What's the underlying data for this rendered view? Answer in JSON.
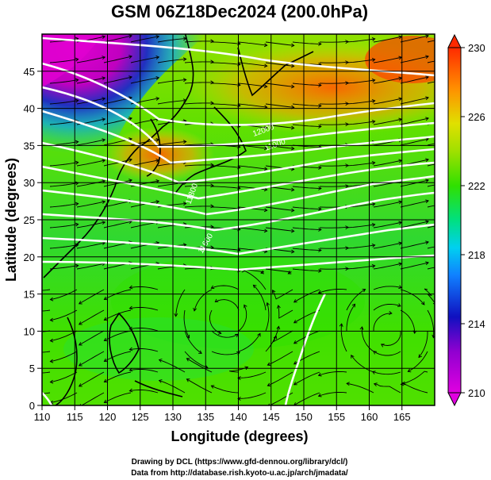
{
  "title": "GSM 06Z18Dec2024 (200.0hPa)",
  "map": {
    "lon_range": [
      110,
      170
    ],
    "lat_range": [
      0,
      50
    ],
    "x_ticks": [
      110,
      115,
      120,
      125,
      130,
      135,
      140,
      145,
      150,
      155,
      160,
      165
    ],
    "y_ticks": [
      0,
      5,
      10,
      15,
      20,
      25,
      30,
      35,
      40,
      45
    ],
    "grid": true,
    "contour_labels": [
      "11000",
      "11600",
      "11800",
      "12000"
    ]
  },
  "axes": {
    "xlabel": "Longitude (degrees)",
    "ylabel": "Latitude  (degrees)"
  },
  "colorbar": {
    "min": 210,
    "max": 230,
    "ticks": [
      "210",
      "214",
      "218",
      "222",
      "226",
      "230"
    ],
    "colors": [
      "#e000e0",
      "#c000c0",
      "#2020c0",
      "#2060ff",
      "#00b0ff",
      "#00e0c0",
      "#00e040",
      "#40e000",
      "#a0e000",
      "#e0e000",
      "#ffb000",
      "#ff7000",
      "#ff3000"
    ]
  },
  "credits": {
    "line1": "Drawing by DCL (https://www.gfd-dennou.org/library/dcl/)",
    "line2": "Data from http://database.rish.kyoto-u.ac.jp/arch/jmadata/"
  }
}
